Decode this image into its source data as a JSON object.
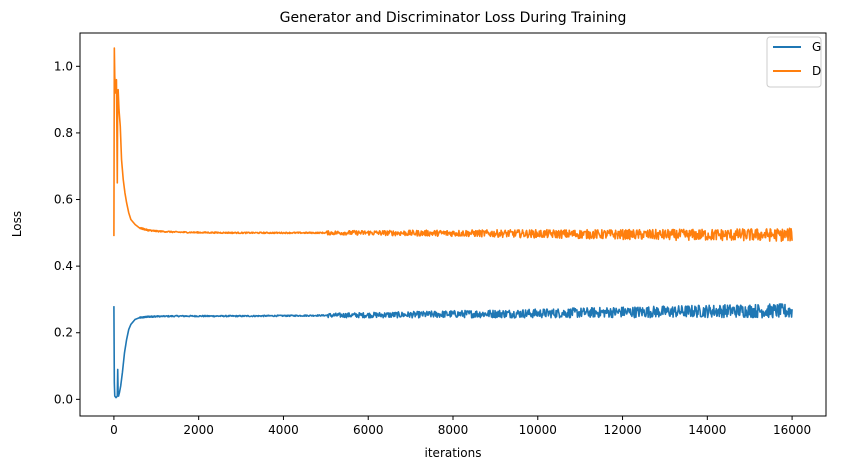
{
  "chart_data": {
    "type": "line",
    "title": "Generator and Discriminator Loss During Training",
    "xlabel": "iterations",
    "ylabel": "Loss",
    "xlim": [
      -800,
      16800
    ],
    "ylim": [
      -0.05,
      1.1
    ],
    "xticks": [
      0,
      2000,
      4000,
      6000,
      8000,
      10000,
      12000,
      14000,
      16000
    ],
    "xtick_labels": [
      "0",
      "2000",
      "4000",
      "6000",
      "8000",
      "10000",
      "12000",
      "14000",
      "16000"
    ],
    "yticks": [
      0.0,
      0.2,
      0.4,
      0.6,
      0.8,
      1.0
    ],
    "ytick_labels": [
      "0.0",
      "0.2",
      "0.4",
      "0.6",
      "0.8",
      "1.0"
    ],
    "grid": false,
    "legend_position": "upper right",
    "series": [
      {
        "name": "G",
        "color": "#1f77b4",
        "x": [
          0,
          10,
          20,
          50,
          80,
          90,
          100,
          110,
          130,
          160,
          200,
          250,
          300,
          350,
          400,
          500,
          600,
          800,
          1000,
          1500,
          2000,
          3000,
          4000,
          5000,
          6000,
          7000,
          8000,
          9000,
          10000,
          11000,
          12000,
          13000,
          14000,
          15000,
          16000
        ],
        "y": [
          0.28,
          0.05,
          0.01,
          0.005,
          0.01,
          0.09,
          0.01,
          0.01,
          0.02,
          0.04,
          0.08,
          0.14,
          0.18,
          0.21,
          0.225,
          0.24,
          0.245,
          0.248,
          0.249,
          0.25,
          0.25,
          0.25,
          0.251,
          0.252,
          0.253,
          0.254,
          0.256,
          0.257,
          0.258,
          0.26,
          0.262,
          0.263,
          0.265,
          0.266,
          0.265
        ],
        "noise_start": 5000,
        "noise_end_amplitude": 0.022
      },
      {
        "name": "D",
        "color": "#ff7f0e",
        "x": [
          0,
          10,
          20,
          40,
          60,
          80,
          90,
          100,
          120,
          150,
          180,
          220,
          260,
          300,
          350,
          400,
          500,
          600,
          800,
          1000,
          1500,
          2000,
          3000,
          4000,
          5000,
          6000,
          7000,
          8000,
          9000,
          10000,
          11000,
          12000,
          13000,
          14000,
          15000,
          16000
        ],
        "y": [
          0.49,
          1.055,
          0.97,
          0.92,
          0.96,
          0.65,
          0.92,
          0.93,
          0.87,
          0.82,
          0.72,
          0.66,
          0.62,
          0.59,
          0.56,
          0.54,
          0.525,
          0.515,
          0.508,
          0.505,
          0.502,
          0.501,
          0.5,
          0.5,
          0.5,
          0.5,
          0.499,
          0.499,
          0.498,
          0.497,
          0.496,
          0.495,
          0.494,
          0.494,
          0.494,
          0.494
        ],
        "noise_start": 5000,
        "noise_end_amplitude": 0.02
      }
    ]
  }
}
